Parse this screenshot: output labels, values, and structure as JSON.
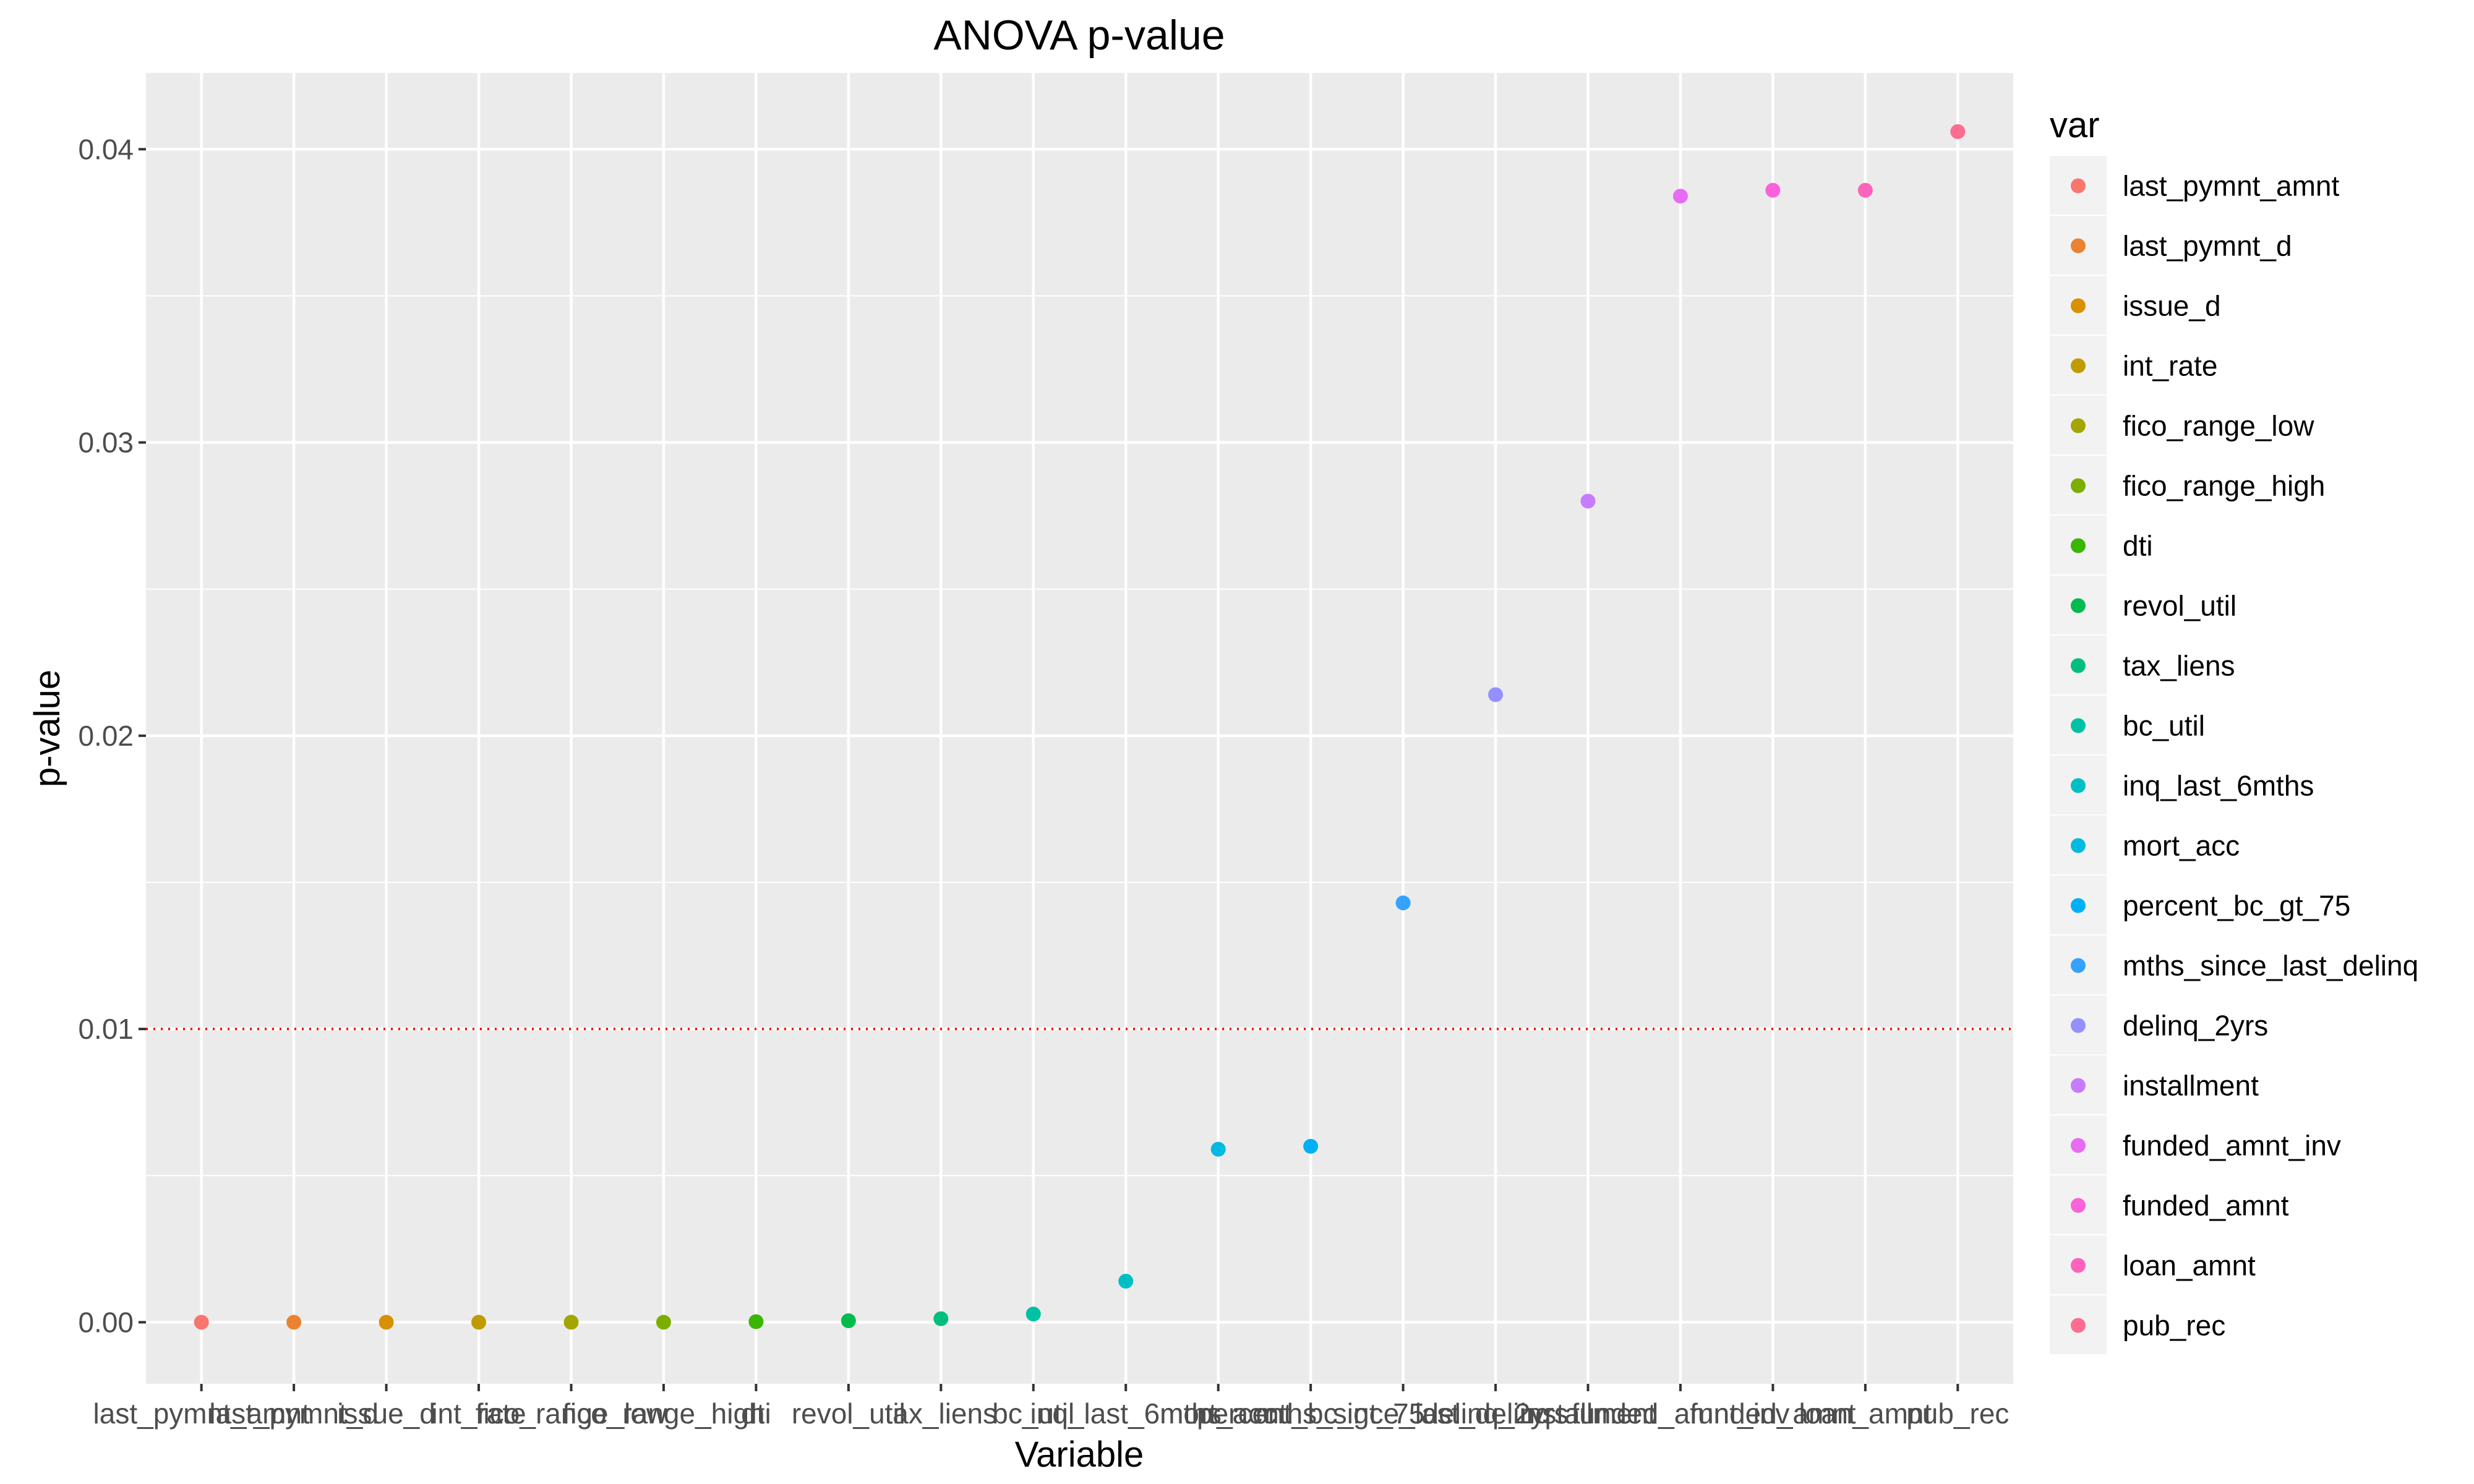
{
  "chart_data": {
    "type": "scatter",
    "title": "ANOVA p-value",
    "xlabel": "Variable",
    "ylabel": "p-value",
    "ylim": [
      -0.0021,
      0.0426
    ],
    "yticks": [
      0.0,
      0.01,
      0.02,
      0.03,
      0.04
    ],
    "ytick_labels": [
      "0.00",
      "0.01",
      "0.02",
      "0.03",
      "0.04"
    ],
    "grid": true,
    "reference_line": {
      "y": 0.01,
      "color": "#ff0000",
      "style": "dotted"
    },
    "legend": {
      "title": "var",
      "placement": "right"
    },
    "categories": [
      "last_pymnt_amnt",
      "last_pymnt_d",
      "issue_d",
      "int_rate",
      "fico_range_low",
      "fico_range_high",
      "dti",
      "revol_util",
      "tax_liens",
      "bc_util",
      "inq_last_6mths",
      "mort_acc",
      "percent_bc_gt_75",
      "mths_since_last_delinq",
      "delinq_2yrs",
      "installment",
      "funded_amnt_inv",
      "funded_amnt",
      "loan_amnt",
      "pub_rec"
    ],
    "values": [
      0.0,
      0.0,
      0.0,
      0.0,
      0.0,
      0.0,
      2e-05,
      5e-05,
      0.00012,
      0.00028,
      0.0014,
      0.0059,
      0.006,
      0.0143,
      0.0214,
      0.028,
      0.0384,
      0.0386,
      0.0386,
      0.0406
    ],
    "colors": [
      "#F8766D",
      "#EA8331",
      "#D89000",
      "#C09B00",
      "#A3A500",
      "#7CAE00",
      "#39B600",
      "#00BB4E",
      "#00BF7D",
      "#00C1A3",
      "#00BFC4",
      "#00BAE0",
      "#00B0F6",
      "#35A2FF",
      "#9590FF",
      "#C77CFF",
      "#E76BF3",
      "#FA62DB",
      "#FF62BC",
      "#FF6C91"
    ],
    "panel_background": "#EBEBEB",
    "grid_color": "#FFFFFF"
  }
}
